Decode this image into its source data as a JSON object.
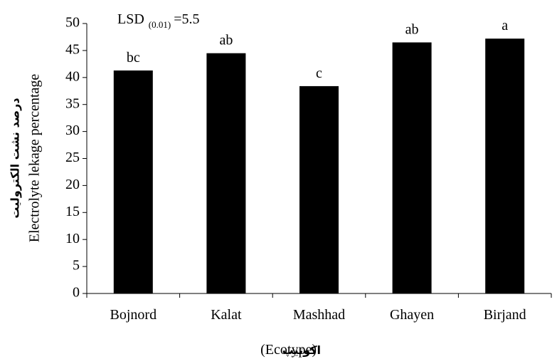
{
  "chart_data": {
    "type": "bar",
    "categories": [
      "Bojnord",
      "Kalat",
      "Mashhad",
      "Ghayen",
      "Birjand"
    ],
    "values": [
      41.3,
      44.5,
      38.4,
      46.5,
      47.2
    ],
    "letters": [
      "bc",
      "ab",
      "c",
      "ab",
      "a"
    ],
    "color": "#000000",
    "ylim": [
      0,
      50
    ],
    "yticks": [
      0,
      5,
      10,
      15,
      20,
      25,
      30,
      35,
      40,
      45,
      50
    ],
    "annotation": {
      "text": "LSD",
      "sub": "(0.01)",
      "value": "=5.5"
    },
    "ylabel": {
      "fa": "درصد نشت الکترولیت",
      "en": "Electrolyte lekage percentage"
    },
    "xlabel": {
      "fa": "اکوتیپ",
      "en": "(Ecotype)"
    }
  }
}
